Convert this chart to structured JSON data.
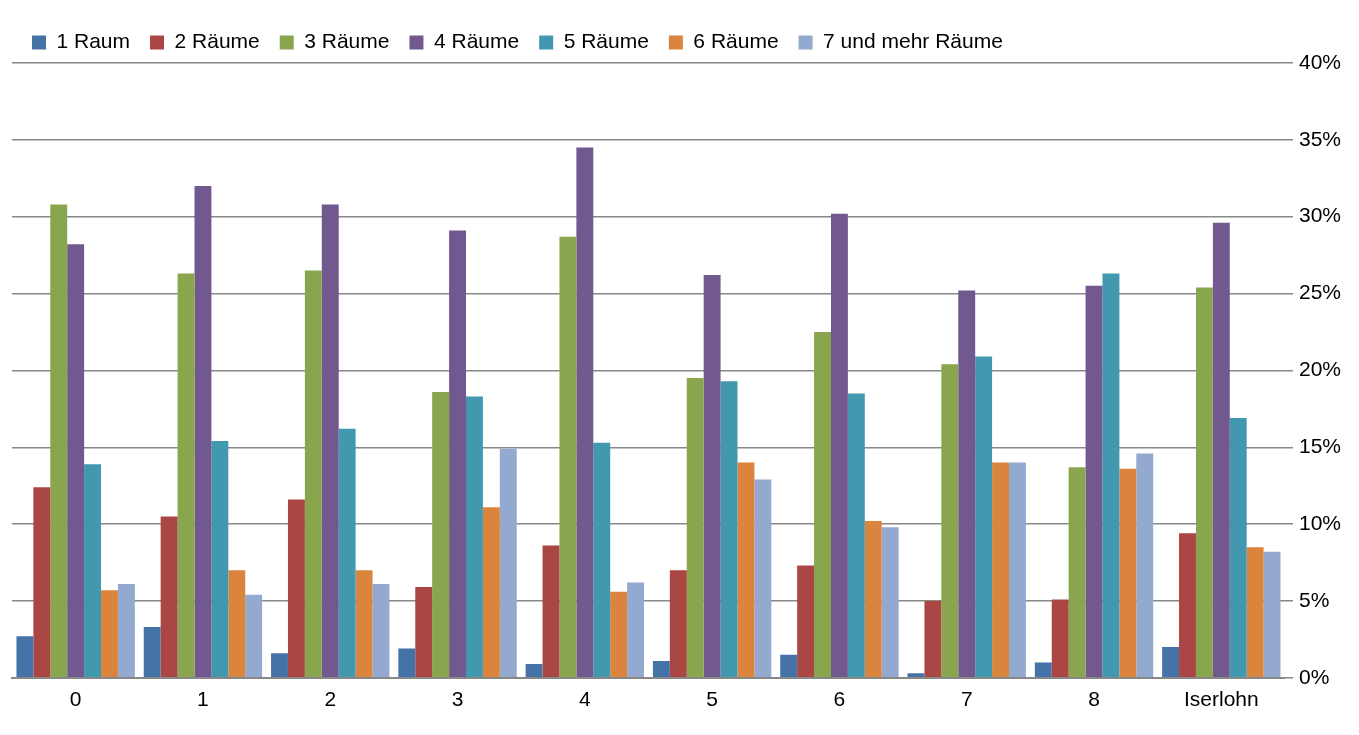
{
  "chart_data": {
    "type": "bar",
    "categories": [
      "0",
      "1",
      "2",
      "3",
      "4",
      "5",
      "6",
      "7",
      "8",
      "Iserlohn"
    ],
    "series": [
      {
        "name": "1 Raum",
        "color": "#4572a7",
        "values": [
          2.7,
          3.3,
          1.6,
          1.9,
          0.9,
          1.1,
          1.5,
          0.3,
          1.0,
          2.0
        ]
      },
      {
        "name": "2 Räume",
        "color": "#aa4643",
        "values": [
          12.4,
          10.5,
          11.6,
          5.9,
          8.6,
          7.0,
          7.3,
          5.0,
          5.1,
          9.4
        ]
      },
      {
        "name": "3 Räume",
        "color": "#89a54e",
        "values": [
          30.8,
          26.3,
          26.5,
          18.6,
          28.7,
          19.5,
          22.5,
          20.4,
          13.7,
          25.4
        ]
      },
      {
        "name": "4 Räume",
        "color": "#71588f",
        "values": [
          28.2,
          32.0,
          30.8,
          29.1,
          34.5,
          26.2,
          30.2,
          25.2,
          25.5,
          29.6
        ]
      },
      {
        "name": "5 Räume",
        "color": "#4198af",
        "values": [
          13.9,
          15.4,
          16.2,
          18.3,
          15.3,
          19.3,
          18.5,
          20.9,
          26.3,
          16.9
        ]
      },
      {
        "name": "6 Räume",
        "color": "#db843d",
        "values": [
          5.7,
          7.0,
          7.0,
          11.1,
          5.6,
          14.0,
          10.2,
          14.0,
          13.6,
          8.5
        ]
      },
      {
        "name": "7 und mehr Räume",
        "color": "#93a9cf",
        "values": [
          6.1,
          5.4,
          6.1,
          14.9,
          6.2,
          12.9,
          9.8,
          14.0,
          14.6,
          8.2
        ]
      }
    ],
    "ylim": [
      0,
      40
    ],
    "yticks": [
      {
        "value": 0,
        "label": "0%"
      },
      {
        "value": 5,
        "label": "5%"
      },
      {
        "value": 10,
        "label": "10%"
      },
      {
        "value": 15,
        "label": "15%"
      },
      {
        "value": 20,
        "label": "20%"
      },
      {
        "value": 25,
        "label": "25%"
      },
      {
        "value": 30,
        "label": "30%"
      },
      {
        "value": 35,
        "label": "35%"
      },
      {
        "value": 40,
        "label": "40%"
      }
    ],
    "grid": "y",
    "legend": "top"
  }
}
